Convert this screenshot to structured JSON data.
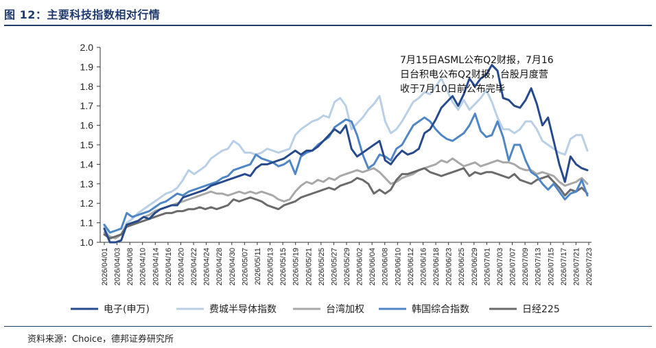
{
  "header": {
    "title": "图 12：主要科技指数相对行情"
  },
  "footer": {
    "source": "资料来源：Choice，德邦证券研究所"
  },
  "chart_data": {
    "type": "line",
    "ylim": [
      1.0,
      2.0
    ],
    "yticks": [
      "1.0",
      "1.1",
      "1.2",
      "1.3",
      "1.4",
      "1.5",
      "1.6",
      "1.7",
      "1.8",
      "1.9",
      "2.0"
    ],
    "xticks": [
      "2026/04/01",
      "2026/04/03",
      "2026/04/08",
      "2026/04/10",
      "2026/04/14",
      "2026/04/16",
      "2026/04/20",
      "2026/04/22",
      "2026/04/24",
      "2026/04/28",
      "2026/04/30",
      "2026/05/07",
      "2026/05/11",
      "2026/05/13",
      "2026/05/15",
      "2026/05/19",
      "2026/05/21",
      "2026/05/25",
      "2026/05/27",
      "2026/05/29",
      "2026/06/02",
      "2026/06/04",
      "2026/06/08",
      "2026/06/10",
      "2026/06/12",
      "2026/06/16",
      "2026/06/18",
      "2026/06/23",
      "2026/06/25",
      "2026/06/29",
      "2026/07/01",
      "2026/07/03",
      "2026/07/07",
      "2026/07/09",
      "2026/07/13",
      "2026/07/15",
      "2026/07/17",
      "2026/07/21",
      "2026/07/23"
    ],
    "annotation": [
      "7月15日ASML公布Q2财报，7月16",
      "日台积电公布Q2财报，台股月度营",
      "收于7月10日前公布完毕"
    ],
    "series": [
      {
        "name": "电子(申万)",
        "color": "#264a8c",
        "width": 3,
        "values": [
          1.07,
          1.0,
          1.0,
          1.01,
          1.09,
          1.1,
          1.11,
          1.13,
          1.12,
          1.15,
          1.17,
          1.18,
          1.19,
          1.19,
          1.23,
          1.24,
          1.25,
          1.26,
          1.27,
          1.29,
          1.3,
          1.31,
          1.32,
          1.33,
          1.34,
          1.35,
          1.34,
          1.38,
          1.4,
          1.4,
          1.41,
          1.42,
          1.43,
          1.45,
          1.47,
          1.45,
          1.47,
          1.47,
          1.49,
          1.52,
          1.55,
          1.58,
          1.56,
          1.6,
          1.48,
          1.44,
          1.46,
          1.48,
          1.5,
          1.52,
          1.42,
          1.4,
          1.44,
          1.47,
          1.45,
          1.46,
          1.48,
          1.56,
          1.58,
          1.63,
          1.69,
          1.72,
          1.75,
          1.7,
          1.76,
          1.84,
          1.8,
          1.84,
          1.86,
          1.91,
          1.88,
          1.74,
          1.73,
          1.7,
          1.69,
          1.73,
          1.79,
          1.71,
          1.6,
          1.64,
          1.52,
          1.4,
          1.31,
          1.44,
          1.4,
          1.38,
          1.37
        ]
      },
      {
        "name": "费城半导体指数",
        "color": "#b9cfe6",
        "width": 3,
        "values": [
          1.08,
          1.02,
          1.03,
          1.04,
          1.1,
          1.12,
          1.15,
          1.17,
          1.19,
          1.21,
          1.23,
          1.25,
          1.26,
          1.28,
          1.32,
          1.37,
          1.35,
          1.37,
          1.39,
          1.43,
          1.45,
          1.47,
          1.48,
          1.52,
          1.5,
          1.46,
          1.46,
          1.45,
          1.46,
          1.48,
          1.47,
          1.46,
          1.47,
          1.48,
          1.55,
          1.58,
          1.6,
          1.62,
          1.63,
          1.65,
          1.64,
          1.72,
          1.74,
          1.7,
          1.58,
          1.61,
          1.64,
          1.68,
          1.71,
          1.75,
          1.62,
          1.56,
          1.58,
          1.62,
          1.67,
          1.72,
          1.74,
          1.77,
          1.76,
          1.8,
          1.84,
          1.78,
          1.72,
          1.68,
          1.73,
          1.68,
          1.71,
          1.74,
          1.78,
          1.72,
          1.64,
          1.58,
          1.58,
          1.56,
          1.58,
          1.62,
          1.62,
          1.58,
          1.52,
          1.5,
          1.48,
          1.46,
          1.45,
          1.53,
          1.55,
          1.55,
          1.47
        ]
      },
      {
        "name": "台湾加权",
        "color": "#a8a8a8",
        "width": 3,
        "values": [
          1.05,
          1.03,
          1.02,
          1.04,
          1.09,
          1.1,
          1.11,
          1.13,
          1.14,
          1.16,
          1.17,
          1.18,
          1.19,
          1.2,
          1.21,
          1.22,
          1.23,
          1.24,
          1.25,
          1.26,
          1.25,
          1.25,
          1.24,
          1.25,
          1.26,
          1.25,
          1.26,
          1.25,
          1.26,
          1.25,
          1.24,
          1.22,
          1.21,
          1.22,
          1.26,
          1.29,
          1.31,
          1.3,
          1.32,
          1.31,
          1.33,
          1.32,
          1.34,
          1.35,
          1.36,
          1.37,
          1.36,
          1.37,
          1.38,
          1.36,
          1.33,
          1.3,
          1.31,
          1.33,
          1.34,
          1.35,
          1.37,
          1.38,
          1.39,
          1.4,
          1.42,
          1.41,
          1.43,
          1.41,
          1.39,
          1.4,
          1.41,
          1.39,
          1.4,
          1.41,
          1.42,
          1.41,
          1.41,
          1.4,
          1.38,
          1.37,
          1.37,
          1.35,
          1.36,
          1.35,
          1.34,
          1.31,
          1.29,
          1.3,
          1.31,
          1.33,
          1.3
        ]
      },
      {
        "name": "韩国综合指数",
        "color": "#4f86c6",
        "width": 3,
        "values": [
          1.09,
          1.05,
          1.06,
          1.07,
          1.15,
          1.13,
          1.14,
          1.15,
          1.16,
          1.18,
          1.2,
          1.21,
          1.23,
          1.25,
          1.24,
          1.26,
          1.27,
          1.28,
          1.29,
          1.3,
          1.31,
          1.33,
          1.34,
          1.37,
          1.38,
          1.39,
          1.4,
          1.45,
          1.43,
          1.42,
          1.41,
          1.39,
          1.4,
          1.42,
          1.35,
          1.44,
          1.46,
          1.47,
          1.5,
          1.52,
          1.54,
          1.59,
          1.61,
          1.63,
          1.62,
          1.55,
          1.45,
          1.38,
          1.4,
          1.45,
          1.44,
          1.42,
          1.48,
          1.5,
          1.55,
          1.6,
          1.62,
          1.64,
          1.62,
          1.58,
          1.55,
          1.53,
          1.52,
          1.54,
          1.56,
          1.6,
          1.66,
          1.57,
          1.54,
          1.55,
          1.62,
          1.54,
          1.42,
          1.5,
          1.5,
          1.42,
          1.36,
          1.34,
          1.3,
          1.27,
          1.3,
          1.26,
          1.22,
          1.25,
          1.26,
          1.32,
          1.24
        ]
      },
      {
        "name": "日经225",
        "color": "#6b6b6b",
        "width": 3,
        "values": [
          1.04,
          1.02,
          1.03,
          1.04,
          1.08,
          1.09,
          1.1,
          1.11,
          1.12,
          1.13,
          1.14,
          1.15,
          1.15,
          1.16,
          1.16,
          1.17,
          1.17,
          1.18,
          1.17,
          1.18,
          1.17,
          1.18,
          1.19,
          1.22,
          1.21,
          1.22,
          1.23,
          1.22,
          1.21,
          1.19,
          1.18,
          1.17,
          1.19,
          1.2,
          1.21,
          1.23,
          1.24,
          1.25,
          1.26,
          1.27,
          1.28,
          1.27,
          1.29,
          1.3,
          1.31,
          1.33,
          1.32,
          1.3,
          1.25,
          1.27,
          1.25,
          1.27,
          1.32,
          1.35,
          1.35,
          1.36,
          1.37,
          1.38,
          1.36,
          1.35,
          1.34,
          1.35,
          1.36,
          1.37,
          1.38,
          1.34,
          1.36,
          1.35,
          1.36,
          1.36,
          1.35,
          1.34,
          1.33,
          1.35,
          1.32,
          1.31,
          1.3,
          1.32,
          1.33,
          1.34,
          1.31,
          1.28,
          1.24,
          1.27,
          1.26,
          1.28,
          1.25
        ]
      }
    ]
  }
}
